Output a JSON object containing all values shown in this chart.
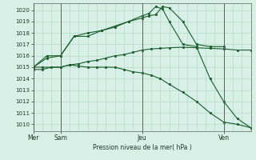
{
  "background_color": "#d8f0e8",
  "plot_bg_color": "#d8f0e8",
  "grid_color": "#a8d8c0",
  "line_color": "#1a5c2a",
  "title": "Pression niveau de la mer( hPa )",
  "ylabel_values": [
    1010,
    1011,
    1012,
    1013,
    1014,
    1015,
    1016,
    1017,
    1018,
    1019,
    1020
  ],
  "ylim": [
    1009.4,
    1020.6
  ],
  "xlim": [
    0,
    96
  ],
  "xtick_positions": [
    0,
    12,
    48,
    84
  ],
  "xtick_labels": [
    "Mer",
    "Sam",
    "Jeu",
    "Ven"
  ],
  "vline_positions": [
    0,
    12,
    48,
    84
  ],
  "line1_x": [
    0,
    6,
    12,
    18,
    24,
    30,
    36,
    42,
    48,
    51,
    54,
    57,
    60,
    66,
    72,
    78,
    84
  ],
  "line1_y": [
    1015.0,
    1015.8,
    1016.0,
    1017.7,
    1017.7,
    1018.2,
    1018.5,
    1019.0,
    1019.3,
    1019.5,
    1019.6,
    1020.3,
    1020.2,
    1019.0,
    1017.0,
    1016.8,
    1016.8
  ],
  "line2_x": [
    0,
    4,
    12,
    16,
    20,
    24,
    28,
    32,
    36,
    40,
    44,
    48,
    52,
    56,
    60,
    66,
    72,
    78,
    84,
    90,
    96
  ],
  "line2_y": [
    1015.0,
    1015.0,
    1015.0,
    1015.2,
    1015.3,
    1015.5,
    1015.6,
    1015.8,
    1016.0,
    1016.1,
    1016.3,
    1016.5,
    1016.6,
    1016.65,
    1016.7,
    1016.75,
    1016.7,
    1016.65,
    1016.6,
    1016.5,
    1016.5
  ],
  "line3_x": [
    0,
    6,
    12,
    18,
    24,
    30,
    36,
    42,
    48,
    51,
    54,
    57,
    60,
    66,
    72,
    78,
    84,
    90,
    96
  ],
  "line3_y": [
    1015.0,
    1016.0,
    1016.0,
    1017.7,
    1018.0,
    1018.2,
    1018.6,
    1019.0,
    1019.5,
    1019.7,
    1020.3,
    1020.1,
    1019.0,
    1017.0,
    1016.8,
    1014.0,
    1012.0,
    1010.5,
    1009.7
  ],
  "line4_x": [
    0,
    4,
    8,
    12,
    16,
    20,
    24,
    28,
    32,
    36,
    40,
    44,
    48,
    52,
    56,
    60,
    66,
    72,
    78,
    84,
    90,
    96
  ],
  "line4_y": [
    1014.8,
    1014.8,
    1015.0,
    1015.0,
    1015.2,
    1015.1,
    1015.0,
    1015.0,
    1015.0,
    1015.0,
    1014.8,
    1014.6,
    1014.5,
    1014.3,
    1014.0,
    1013.5,
    1012.8,
    1012.0,
    1011.0,
    1010.2,
    1010.0,
    1009.7
  ]
}
